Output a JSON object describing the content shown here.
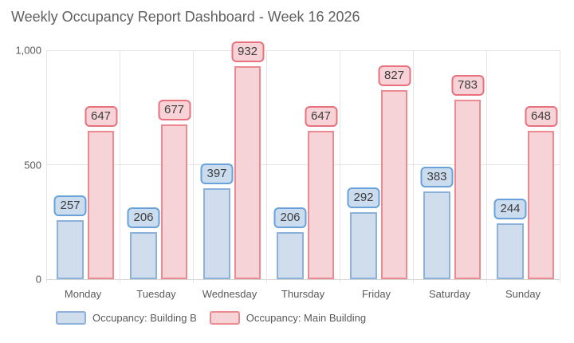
{
  "title": "Weekly Occupancy Report Dashboard - Week 16 2026",
  "chart_data": {
    "type": "bar",
    "title": "Weekly Occupancy Report Dashboard - Week 16 2026",
    "categories": [
      "Monday",
      "Tuesday",
      "Wednesday",
      "Thursday",
      "Friday",
      "Saturday",
      "Sunday"
    ],
    "series": [
      {
        "name": "Occupancy: Building B",
        "values": [
          257,
          206,
          397,
          206,
          292,
          383,
          244
        ],
        "bar_fill": "#cfddec",
        "bar_border": "#8cb2db",
        "label_fill": "#cbdcef",
        "label_border": "#68a2d8"
      },
      {
        "name": "Occupancy: Main Building",
        "values": [
          647,
          677,
          932,
          647,
          827,
          783,
          648
        ],
        "bar_fill": "#f6d3d6",
        "bar_border": "#ec8a92",
        "label_fill": "#f7d3d7",
        "label_border": "#e8717d"
      }
    ],
    "xlabel": "",
    "ylabel": "",
    "y_axis": {
      "max": 1000,
      "ticks": [
        {
          "value": 0,
          "label": "0"
        },
        {
          "value": 500,
          "label": "500"
        },
        {
          "value": 1000,
          "label": "1,000"
        }
      ]
    },
    "grid": true,
    "legend_position": "bottom",
    "data_labels": true,
    "colors": {
      "title_text": "#606060",
      "axis_text": "#595959",
      "label_text": "#3d3d3d",
      "gridline": "#e4e4e4",
      "axis_line": "#d4d4d4",
      "background": "#ffffff"
    }
  }
}
